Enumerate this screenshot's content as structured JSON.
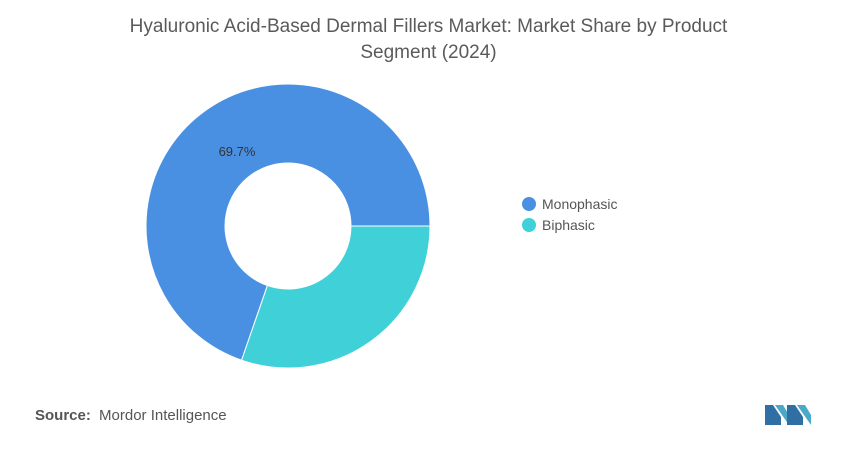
{
  "title_line1": "Hyaluronic Acid-Based Dermal Fillers Market: Market Share by Product",
  "title_line2": "Segment (2024)",
  "source": {
    "label": "Source:",
    "value": "Mordor Intelligence"
  },
  "colors": {
    "monophasic": "#4a90e2",
    "biphasic": "#3fd0d8",
    "logo": "#2f6fa3"
  },
  "chart_data": {
    "type": "pie",
    "donut": true,
    "title": "Hyaluronic Acid-Based Dermal Fillers Market: Market Share by Product Segment (2024)",
    "categories": [
      "Monophasic",
      "Biphasic"
    ],
    "values": [
      69.7,
      30.3
    ],
    "data_labels": [
      "69.7%",
      ""
    ],
    "legend_placement": "right"
  }
}
